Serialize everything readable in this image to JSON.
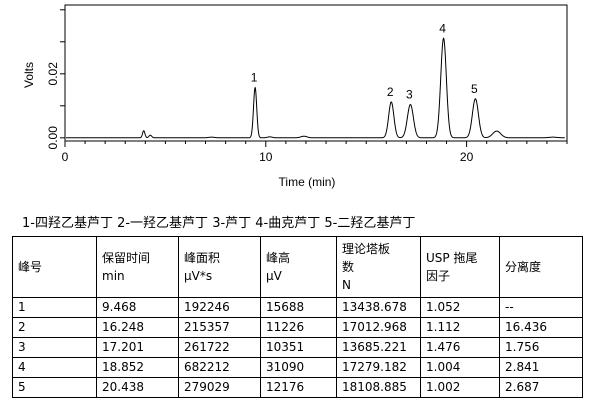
{
  "chart_data": {
    "type": "line",
    "xlabel": "Time (min)",
    "ylabel": "Volts",
    "xlim": [
      0,
      25
    ],
    "ylim": [
      -0.001,
      0.0415
    ],
    "x_ticks": [
      0,
      10,
      20
    ],
    "y_ticks": [
      0.0,
      0.01,
      0.02,
      0.03,
      0.04
    ],
    "y_tick_labels": [
      "0.00",
      "",
      "0.02",
      "",
      ""
    ],
    "peaks": [
      {
        "label": "1",
        "time": 9.468,
        "height": 0.0157,
        "width": 0.08
      },
      {
        "label": "2",
        "time": 16.248,
        "height": 0.0112,
        "width": 0.13
      },
      {
        "label": "3",
        "time": 17.201,
        "height": 0.0104,
        "width": 0.15
      },
      {
        "label": "4",
        "time": 18.852,
        "height": 0.0311,
        "width": 0.14
      },
      {
        "label": "5",
        "time": 20.438,
        "height": 0.0122,
        "width": 0.15
      }
    ],
    "minor_peaks": [
      {
        "time": 3.92,
        "height": 0.0022,
        "width": 0.06
      },
      {
        "time": 4.25,
        "height": 0.0008,
        "width": 0.07
      },
      {
        "time": 7.3,
        "height": 0.0002,
        "width": 0.15
      },
      {
        "time": 10.2,
        "height": 0.0003,
        "width": 0.12
      },
      {
        "time": 11.9,
        "height": 0.0005,
        "width": 0.15
      },
      {
        "time": 21.5,
        "height": 0.0021,
        "width": 0.2
      },
      {
        "time": 24.3,
        "height": 0.0002,
        "width": 0.2
      }
    ],
    "baseline": 0.0,
    "grid": false
  },
  "legend_text": "1-四羟乙基芦丁   2-一羟乙基芦丁   3-芦丁   4-曲克芦丁   5-二羟乙基芦丁",
  "table": {
    "headers": [
      {
        "lines": [
          "峰号"
        ]
      },
      {
        "lines": [
          "保留时间",
          "min"
        ]
      },
      {
        "lines": [
          "峰面积",
          "μV*s"
        ]
      },
      {
        "lines": [
          "峰高",
          "μV"
        ]
      },
      {
        "lines": [
          "理论塔板",
          "数",
          "N"
        ]
      },
      {
        "lines": [
          "USP 拖尾",
          "因子"
        ]
      },
      {
        "lines": [
          "分离度"
        ]
      }
    ],
    "rows": [
      [
        "1",
        "9.468",
        "192246",
        "15688",
        "13438.678",
        "1.052",
        "--"
      ],
      [
        "2",
        "16.248",
        "215357",
        "11226",
        "17012.968",
        "1.112",
        "16.436"
      ],
      [
        "3",
        "17.201",
        "261722",
        "10351",
        "13685.221",
        "1.476",
        "1.756"
      ],
      [
        "4",
        "18.852",
        "682212",
        "31090",
        "17279.182",
        "1.004",
        "2.841"
      ],
      [
        "5",
        "20.438",
        "279029",
        "12176",
        "18108.885",
        "1.002",
        "2.687"
      ]
    ]
  }
}
